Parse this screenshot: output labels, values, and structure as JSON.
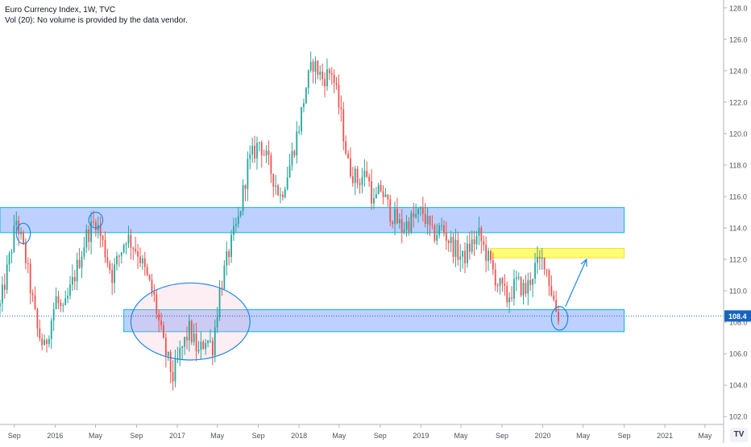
{
  "header": {
    "symbol_line": "Euro Currency Index, 1W, TVC",
    "volume_line": "Vol (20): No volume is provided by the data vendor."
  },
  "colors": {
    "up": "#26a69a",
    "down": "#ef5350",
    "zone_blue": "#2962ff",
    "zone_yellow": "#ffff00",
    "circle_red_fill": "#f8bbd0",
    "annotation_blue": "#1e88e5",
    "last_price": "#1565c0"
  },
  "chart_data": {
    "type": "candlestick",
    "y_range": [
      101.5,
      128.5
    ],
    "y_ticks": [
      {
        "value": 102,
        "label": "102.0"
      },
      {
        "value": 104,
        "label": "104.0"
      },
      {
        "value": 106,
        "label": "106.0"
      },
      {
        "value": 108,
        "label": "108.0"
      },
      {
        "value": 110,
        "label": "110.0"
      },
      {
        "value": 112,
        "label": "112.0"
      },
      {
        "value": 114,
        "label": "114.0"
      },
      {
        "value": 116,
        "label": "116.0"
      },
      {
        "value": 118,
        "label": "118.0"
      },
      {
        "value": 120,
        "label": "120.0"
      },
      {
        "value": 122,
        "label": "122.0"
      },
      {
        "value": 124,
        "label": "124.0"
      },
      {
        "value": 126,
        "label": "126.0"
      },
      {
        "value": 128,
        "label": "128.0"
      }
    ],
    "x_range": [
      "2015-07-20",
      "2021-06-21"
    ],
    "x_ticks": [
      {
        "date": "2015-09-01",
        "label": "Sep"
      },
      {
        "date": "2016-01-01",
        "label": "2016"
      },
      {
        "date": "2016-05-01",
        "label": "May"
      },
      {
        "date": "2016-09-01",
        "label": "Sep"
      },
      {
        "date": "2017-01-01",
        "label": "2017"
      },
      {
        "date": "2017-05-01",
        "label": "May"
      },
      {
        "date": "2017-09-01",
        "label": "Sep"
      },
      {
        "date": "2018-01-01",
        "label": "2018"
      },
      {
        "date": "2018-05-01",
        "label": "May"
      },
      {
        "date": "2018-09-01",
        "label": "Sep"
      },
      {
        "date": "2019-01-01",
        "label": "2019"
      },
      {
        "date": "2019-05-01",
        "label": "May"
      },
      {
        "date": "2019-09-01",
        "label": "Sep"
      },
      {
        "date": "2020-01-01",
        "label": "2020"
      },
      {
        "date": "2020-05-01",
        "label": "May"
      },
      {
        "date": "2020-09-01",
        "label": "Sep"
      },
      {
        "date": "2021-01-01",
        "label": "2021"
      },
      {
        "date": "2021-05-01",
        "label": "May"
      }
    ],
    "close_path": [
      {
        "date": "2015-07-20",
        "close": 109.0
      },
      {
        "date": "2015-08-17",
        "close": 112.0
      },
      {
        "date": "2015-09-07",
        "close": 114.5
      },
      {
        "date": "2015-10-05",
        "close": 112.0
      },
      {
        "date": "2015-11-09",
        "close": 107.5
      },
      {
        "date": "2015-11-30",
        "close": 106.3
      },
      {
        "date": "2016-01-04",
        "close": 109.5
      },
      {
        "date": "2016-01-25",
        "close": 108.5
      },
      {
        "date": "2016-02-22",
        "close": 110.5
      },
      {
        "date": "2016-04-04",
        "close": 113.5
      },
      {
        "date": "2016-05-02",
        "close": 114.5
      },
      {
        "date": "2016-05-30",
        "close": 112.5
      },
      {
        "date": "2016-06-20",
        "close": 111.0
      },
      {
        "date": "2016-08-01",
        "close": 113.5
      },
      {
        "date": "2016-09-05",
        "close": 112.5
      },
      {
        "date": "2016-10-24",
        "close": 109.5
      },
      {
        "date": "2016-11-21",
        "close": 106.5
      },
      {
        "date": "2016-12-19",
        "close": 104.5
      },
      {
        "date": "2017-01-09",
        "close": 106.0
      },
      {
        "date": "2017-02-06",
        "close": 107.5
      },
      {
        "date": "2017-03-06",
        "close": 106.0
      },
      {
        "date": "2017-03-27",
        "close": 107.0
      },
      {
        "date": "2017-04-17",
        "close": 106.5
      },
      {
        "date": "2017-05-08",
        "close": 110.0
      },
      {
        "date": "2017-06-05",
        "close": 112.5
      },
      {
        "date": "2017-07-03",
        "close": 114.5
      },
      {
        "date": "2017-07-31",
        "close": 118.0
      },
      {
        "date": "2017-09-04",
        "close": 119.5
      },
      {
        "date": "2017-10-02",
        "close": 118.0
      },
      {
        "date": "2017-11-06",
        "close": 116.0
      },
      {
        "date": "2017-12-04",
        "close": 118.0
      },
      {
        "date": "2018-01-01",
        "close": 120.5
      },
      {
        "date": "2018-01-22",
        "close": 123.0
      },
      {
        "date": "2018-02-12",
        "close": 124.5
      },
      {
        "date": "2018-03-12",
        "close": 123.5
      },
      {
        "date": "2018-04-09",
        "close": 124.0
      },
      {
        "date": "2018-05-07",
        "close": 121.0
      },
      {
        "date": "2018-05-28",
        "close": 118.0
      },
      {
        "date": "2018-06-25",
        "close": 117.0
      },
      {
        "date": "2018-07-23",
        "close": 117.5
      },
      {
        "date": "2018-08-13",
        "close": 115.5
      },
      {
        "date": "2018-09-03",
        "close": 116.5
      },
      {
        "date": "2018-10-01",
        "close": 115.0
      },
      {
        "date": "2018-11-05",
        "close": 114.0
      },
      {
        "date": "2018-12-03",
        "close": 114.5
      },
      {
        "date": "2019-01-07",
        "close": 115.0
      },
      {
        "date": "2019-02-04",
        "close": 113.5
      },
      {
        "date": "2019-03-04",
        "close": 114.0
      },
      {
        "date": "2019-04-01",
        "close": 113.0
      },
      {
        "date": "2019-05-06",
        "close": 112.0
      },
      {
        "date": "2019-06-03",
        "close": 113.0
      },
      {
        "date": "2019-06-24",
        "close": 113.5
      },
      {
        "date": "2019-07-22",
        "close": 112.0
      },
      {
        "date": "2019-08-19",
        "close": 110.5
      },
      {
        "date": "2019-09-16",
        "close": 109.5
      },
      {
        "date": "2019-10-14",
        "close": 110.5
      },
      {
        "date": "2019-11-11",
        "close": 110.0
      },
      {
        "date": "2019-12-09",
        "close": 111.5
      },
      {
        "date": "2020-01-06",
        "close": 112.0
      },
      {
        "date": "2020-01-27",
        "close": 110.0
      },
      {
        "date": "2020-02-10",
        "close": 108.8
      },
      {
        "date": "2020-02-17",
        "close": 108.4
      }
    ],
    "last_price": 108.4,
    "last_price_label": "108.4",
    "annotations": [
      {
        "kind": "zone",
        "color": "blue",
        "x_from": "2015-07-20",
        "x_to": "2020-09-01",
        "y_from": 113.7,
        "y_to": 115.3
      },
      {
        "kind": "zone",
        "color": "blue",
        "x_from": "2016-07-25",
        "x_to": "2020-09-01",
        "y_from": 107.4,
        "y_to": 108.8
      },
      {
        "kind": "zone",
        "color": "yellow",
        "x_from": "2019-07-29",
        "x_to": "2020-09-01",
        "y_from": 112.1,
        "y_to": 112.7
      },
      {
        "kind": "ellipse",
        "style": "red",
        "x_from": "2016-08-15",
        "x_to": "2017-08-07",
        "y_from": 105.6,
        "y_to": 110.5
      },
      {
        "kind": "circle",
        "style": "blue",
        "x_from": "2015-09-07",
        "x_to": "2015-10-19",
        "y_from": 113.0,
        "y_to": 114.3
      },
      {
        "kind": "circle",
        "style": "blue",
        "x_from": "2016-04-11",
        "x_to": "2016-05-23",
        "y_from": 114.0,
        "y_to": 115.0
      },
      {
        "kind": "circle",
        "style": "blue",
        "x_from": "2020-01-27",
        "x_to": "2020-03-16",
        "y_from": 107.5,
        "y_to": 109.0
      },
      {
        "kind": "arrow",
        "style": "blue",
        "from": {
          "date": "2020-03-09",
          "value": 109.0
        },
        "to": {
          "date": "2020-05-11",
          "value": 112.0
        }
      }
    ]
  }
}
